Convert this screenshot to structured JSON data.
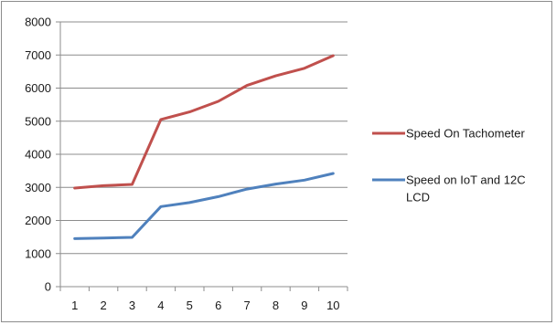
{
  "chart_data": {
    "type": "line",
    "x": [
      1,
      2,
      3,
      4,
      5,
      6,
      7,
      8,
      9,
      10
    ],
    "series": [
      {
        "name": "Speed On Tachometer",
        "color": "#c0504d",
        "values": [
          2980,
          3050,
          3090,
          5050,
          5280,
          5600,
          6080,
          6370,
          6600,
          6980
        ]
      },
      {
        "name": "Speed on IoT and 12C LCD",
        "color": "#4f81bd",
        "values": [
          1450,
          1470,
          1490,
          2420,
          2540,
          2720,
          2950,
          3100,
          3220,
          3420
        ]
      }
    ],
    "ylim": [
      0,
      8000
    ],
    "yticks": [
      "0",
      "1000",
      "2000",
      "3000",
      "4000",
      "5000",
      "6000",
      "7000",
      "8000"
    ],
    "xticks": [
      "1",
      "2",
      "3",
      "4",
      "5",
      "6",
      "7",
      "8",
      "9",
      "10"
    ],
    "grid": "horizontal",
    "legend": "right",
    "legend_lines": [
      [
        "Speed On Tachometer"
      ],
      [
        "Speed on IoT and 12C",
        "LCD"
      ]
    ]
  }
}
